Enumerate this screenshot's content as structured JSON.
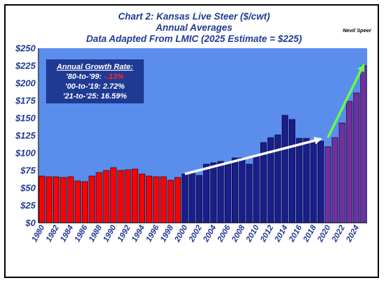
{
  "chart_data": {
    "type": "bar",
    "title": "Chart 2: Kansas Live Steer ($/cwt)",
    "subtitle_lines": [
      "Annual Averages",
      "Data Adapted From LMIC (2025 Estimate = $225)"
    ],
    "author": "Nevil Speer",
    "xlabel": "",
    "ylabel": "",
    "ylim": [
      0,
      250
    ],
    "yticks": [
      0,
      25,
      50,
      75,
      100,
      125,
      150,
      175,
      200,
      225,
      250
    ],
    "ytick_labels": [
      "$0",
      "$25",
      "$50",
      "$75",
      "$100",
      "$125",
      "$150",
      "$175",
      "$200",
      "$225",
      "$250"
    ],
    "grid": false,
    "x": [
      1980,
      1981,
      1982,
      1983,
      1984,
      1985,
      1986,
      1987,
      1988,
      1989,
      1990,
      1991,
      1992,
      1993,
      1994,
      1995,
      1996,
      1997,
      1998,
      1999,
      2000,
      2001,
      2002,
      2003,
      2004,
      2005,
      2006,
      2007,
      2008,
      2009,
      2010,
      2011,
      2012,
      2013,
      2014,
      2015,
      2016,
      2017,
      2018,
      2019,
      2020,
      2021,
      2022,
      2023,
      2024,
      2025
    ],
    "xtick_labels": [
      "1980",
      "1982",
      "1984",
      "1986",
      "1988",
      "1990",
      "1992",
      "1994",
      "1996",
      "1998",
      "2000",
      "2002",
      "2004",
      "2006",
      "2008",
      "2010",
      "2012",
      "2014",
      "2016",
      "2018",
      "2020",
      "2022",
      "2024"
    ],
    "values": [
      67,
      66,
      66,
      65,
      66,
      60,
      59,
      67,
      72,
      75,
      79,
      75,
      76,
      77,
      70,
      67,
      66,
      66,
      61,
      65,
      70,
      72,
      68,
      84,
      86,
      88,
      86,
      93,
      93,
      84,
      96,
      115,
      122,
      126,
      154,
      148,
      121,
      121,
      117,
      117,
      109,
      122,
      143,
      174,
      186,
      225
    ],
    "period_colors": {
      "1980-1999": "#ff0000",
      "2000-2019": "#1c1c8c",
      "2020-2025": "#7030a0"
    },
    "plot_background": "#5b8ded",
    "annotation": {
      "title": "Annual Growth Rate:",
      "rows": [
        {
          "period": "'80-to-'99: ",
          "rate": "-.13%",
          "negative": true
        },
        {
          "period": "'00-to-'19: 2.72%",
          "rate": "",
          "negative": false
        },
        {
          "period": "'21-to-'25: 16.59%",
          "rate": "",
          "negative": false
        }
      ],
      "background": "#1f3a93"
    },
    "trend_arrows": [
      {
        "from": [
          2000,
          70
        ],
        "to": [
          2019,
          120
        ],
        "color": "#ffffff"
      },
      {
        "from": [
          2020,
          122
        ],
        "to": [
          2025,
          226
        ],
        "color": "#66ff44"
      }
    ]
  }
}
